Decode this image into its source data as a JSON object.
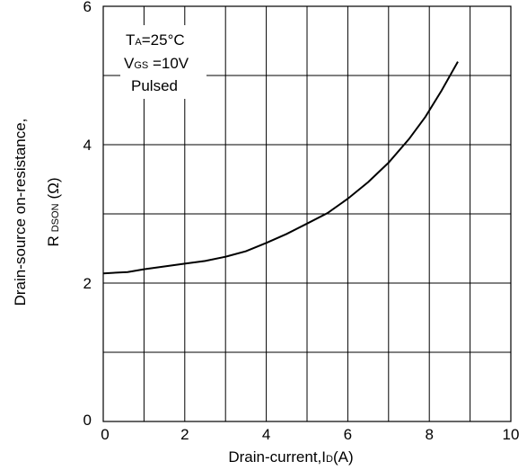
{
  "chart_data": {
    "type": "line",
    "xlabel": {
      "main": "Drain-current,I",
      "sub": "D",
      "unit": "(A)"
    },
    "ylabel": {
      "main": "Drain-source on-resistance,",
      "line2_main": "R",
      "line2_sub": "DSON",
      "unit": "(Ω)"
    },
    "xlim": [
      0,
      10
    ],
    "ylim": [
      0,
      6
    ],
    "x_ticks": [
      0,
      2,
      4,
      6,
      8,
      10
    ],
    "y_ticks": [
      0,
      2,
      4,
      6
    ],
    "x_grid_step": 1,
    "y_grid_step": 1,
    "grid": true,
    "annotations": {
      "line1": {
        "main": "T",
        "sub": "A",
        "rest": "=25°C"
      },
      "line2": {
        "main": "V",
        "sub": "GS",
        "rest": " =10V"
      },
      "line3": "Pulsed"
    },
    "series": [
      {
        "x": [
          0,
          0.6,
          1,
          1.5,
          2,
          2.5,
          3,
          3.5,
          4,
          4.5,
          5,
          5.5,
          6,
          6.5,
          7,
          7.5,
          7.9,
          8.3,
          8.7
        ],
        "y": [
          2.14,
          2.16,
          2.2,
          2.24,
          2.28,
          2.32,
          2.38,
          2.46,
          2.58,
          2.71,
          2.86,
          3.01,
          3.22,
          3.46,
          3.74,
          4.08,
          4.4,
          4.78,
          5.2
        ]
      }
    ]
  }
}
